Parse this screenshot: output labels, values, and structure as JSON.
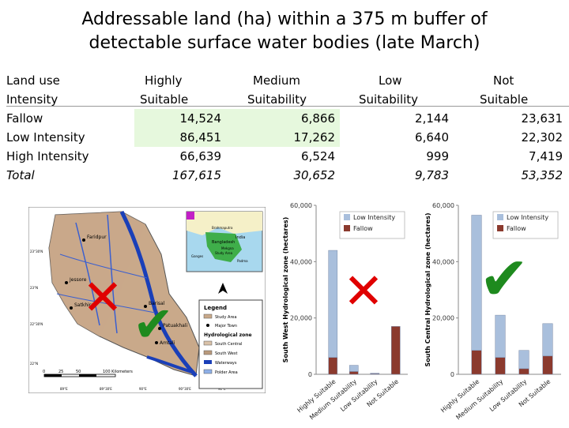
{
  "title": {
    "line1": "Addressable land (ha) within a 375 m buffer of",
    "line2": "detectable surface water bodies (late March)"
  },
  "table": {
    "header_row1": [
      "Land use",
      "Highly",
      "Medium",
      "Low",
      "Not"
    ],
    "header_row2": [
      "Intensity",
      "Suitable",
      "Suitability",
      "Suitability",
      "Suitable"
    ],
    "rows": [
      {
        "label": "Fallow",
        "values": [
          "14,524",
          "6,866",
          "2,144",
          "23,631"
        ]
      },
      {
        "label": "Low Intensity",
        "values": [
          "86,451",
          "17,262",
          "6,640",
          "22,302"
        ]
      },
      {
        "label": "High Intensity",
        "values": [
          "66,639",
          "6,524",
          "999",
          "7,419"
        ]
      },
      {
        "label": "Total",
        "values": [
          "167,615",
          "30,652",
          "9,783",
          "53,352"
        ]
      }
    ],
    "highlight_color": "#e6f8dd"
  },
  "map": {
    "inset_labels": [
      "Brahmaputra",
      "India",
      "Bangladesh",
      "Study Area",
      "Mekgna",
      "Ganges",
      "Padma"
    ],
    "town_labels": [
      "Faridpur",
      "Jessore",
      "Satkhira",
      "Barisal",
      "Patuakhali",
      "Amtali"
    ],
    "lat_labels": [
      "23°30'N",
      "23°N",
      "22°30'N",
      "22°N"
    ],
    "lon_labels": [
      "89°E",
      "89°30'E",
      "90°E",
      "90°30'E",
      "91°E"
    ],
    "scale_labels": [
      "0",
      "25",
      "50",
      "100 Kilometers"
    ],
    "legend": {
      "title": "Legend",
      "items": [
        "Study Area",
        "Major Town"
      ],
      "zone_title": "Hydrological zone",
      "zones": [
        "South Central",
        "South West",
        "Waterways",
        "Polder Area"
      ]
    },
    "marks": {
      "cross": "✕",
      "check": "✔",
      "cross_color": "#e00000",
      "check_color": "#1e8a1e"
    }
  },
  "chart_data": [
    {
      "type": "bar",
      "stacked": true,
      "ylabel": "South West Hydrological zone (hectares)",
      "categories": [
        "Highly Suitable",
        "Medium Suitability",
        "Low Suitability",
        "Not Suitable"
      ],
      "series": [
        {
          "name": "Low Intensity",
          "color": "#a9bfdc",
          "values": [
            38000,
            2200,
            200,
            0
          ]
        },
        {
          "name": "Fallow",
          "color": "#8b3a2e",
          "values": [
            6000,
            1000,
            200,
            17000
          ]
        }
      ],
      "yticks": [
        "0",
        "20,000",
        "40,000",
        "60,000"
      ],
      "ylim": [
        0,
        60000
      ],
      "legend_position": "top-right",
      "mark": "cross"
    },
    {
      "type": "bar",
      "stacked": true,
      "ylabel": "South Central Hydrological zone (hectares)",
      "categories": [
        "Highly Suitable",
        "Medium Suitability",
        "Low Suitability",
        "Not Suitable"
      ],
      "series": [
        {
          "name": "Low Intensity",
          "color": "#a9bfdc",
          "values": [
            48000,
            15000,
            6500,
            11500
          ]
        },
        {
          "name": "Fallow",
          "color": "#8b3a2e",
          "values": [
            8500,
            6000,
            2000,
            6500
          ]
        }
      ],
      "yticks": [
        "0",
        "20,000",
        "40,000",
        "60,000"
      ],
      "ylim": [
        0,
        60000
      ],
      "legend_position": "top-right",
      "mark": "check"
    }
  ]
}
